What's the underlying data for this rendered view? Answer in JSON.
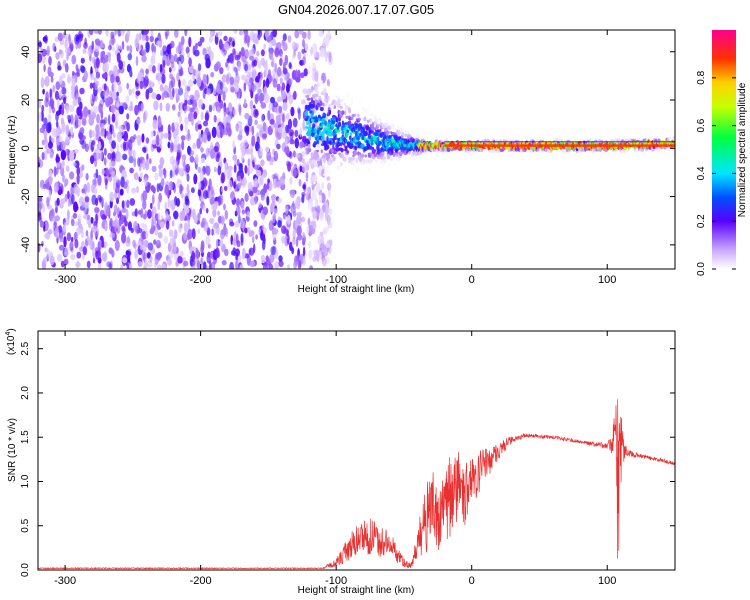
{
  "title": "GN04.2026.007.17.07.G05",
  "chart_data": [
    {
      "type": "heatmap",
      "name": "spectrogram",
      "xlabel": "Height of straight line (km)",
      "ylabel": "Frequency (Hz)",
      "xlim": [
        -320,
        150
      ],
      "ylim": [
        -50,
        49
      ],
      "xticks": [
        -300,
        -200,
        -100,
        0,
        100
      ],
      "yticks": [
        -40,
        -20,
        0,
        20,
        40
      ],
      "colorbar": {
        "label": "Normalized spectral amplitude",
        "range": [
          0,
          1
        ],
        "ticks": [
          0.0,
          0.2,
          0.4,
          0.6,
          0.8
        ],
        "tick_labels": [
          "0.0",
          "0.2",
          "0.4",
          "0.6",
          "0.8"
        ]
      },
      "noise_region_x": [
        -320,
        -112
      ],
      "signal_track": {
        "x": [
          -120,
          -100,
          -80,
          -60,
          -40,
          -20,
          0,
          20,
          60,
          100,
          130,
          150
        ],
        "freq_hz": [
          10,
          7,
          4,
          2,
          1,
          1,
          1,
          1,
          1,
          1,
          1.5,
          2
        ]
      }
    },
    {
      "type": "line",
      "name": "snr",
      "xlabel": "Height of straight line (km)",
      "ylabel": "SNR (10 * v/v)",
      "y_multiplier_label": "(x10",
      "y_multiplier_exp": "4",
      "y_multiplier_close": ")",
      "xlim": [
        -320,
        150
      ],
      "ylim": [
        0,
        2.7
      ],
      "xticks": [
        -300,
        -200,
        -100,
        0,
        100
      ],
      "yticks": [
        0.0,
        0.5,
        1.0,
        1.5,
        2.0,
        2.5
      ],
      "ytick_labels": [
        "0.0",
        "0.5",
        "1.0",
        "1.5",
        "2.0",
        "2.5"
      ],
      "color": "#e83030",
      "series_envelope": {
        "x": [
          -320,
          -110,
          -100,
          -90,
          -80,
          -70,
          -60,
          -50,
          -45,
          -40,
          -35,
          -30,
          -25,
          -20,
          -15,
          -10,
          -5,
          0,
          5,
          10,
          20,
          30,
          40,
          60,
          80,
          100,
          103,
          106,
          108,
          110,
          112,
          115,
          120,
          130,
          140,
          150
        ],
        "mean": [
          0.02,
          0.02,
          0.08,
          0.25,
          0.4,
          0.35,
          0.28,
          0.08,
          0.05,
          0.25,
          0.55,
          0.7,
          0.6,
          0.65,
          0.9,
          0.95,
          0.85,
          1.0,
          1.1,
          1.2,
          1.35,
          1.48,
          1.52,
          1.5,
          1.45,
          1.4,
          1.42,
          1.5,
          1.1,
          1.45,
          1.35,
          1.32,
          1.3,
          1.27,
          1.24,
          1.2
        ],
        "noise": [
          0.005,
          0.005,
          0.05,
          0.15,
          0.22,
          0.2,
          0.15,
          0.05,
          0.03,
          0.18,
          0.4,
          0.45,
          0.4,
          0.4,
          0.5,
          0.4,
          0.35,
          0.25,
          0.25,
          0.2,
          0.1,
          0.04,
          0.02,
          0.02,
          0.02,
          0.03,
          0.1,
          0.4,
          1.4,
          0.5,
          0.15,
          0.05,
          0.03,
          0.02,
          0.02,
          0.02
        ]
      }
    }
  ]
}
